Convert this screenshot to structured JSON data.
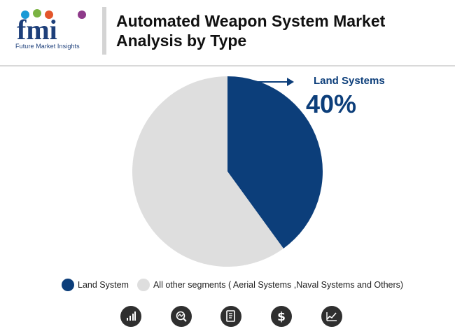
{
  "header": {
    "logo_text": "fmi",
    "logo_caption": "Future Market Insights",
    "title_line1": "Automated Weapon System Market",
    "title_line2": "Analysis by Type"
  },
  "callout": {
    "label": "Land Systems",
    "value": "40%"
  },
  "colors": {
    "land": "#0c3e7a",
    "other": "#dedede",
    "icon_bg": "#2f2f2f"
  },
  "chart_data": {
    "type": "pie",
    "categories": [
      "Land System",
      "All other segments ( Aerial Systems ,Naval Systems and Others)"
    ],
    "values": [
      40,
      60
    ],
    "colors": [
      "#0c3e7a",
      "#dedede"
    ],
    "start_angle": "12 o'clock, clockwise"
  },
  "legend": [
    {
      "label": "Land System",
      "color": "#0c3e7a"
    },
    {
      "label": "All other segments ( Aerial Systems ,Naval Systems and Others)",
      "color": "#dedede"
    }
  ],
  "footer_icons": [
    "bar-chart-icon",
    "magnifier-chart-icon",
    "document-icon",
    "dollar-icon",
    "trend-chart-icon"
  ]
}
